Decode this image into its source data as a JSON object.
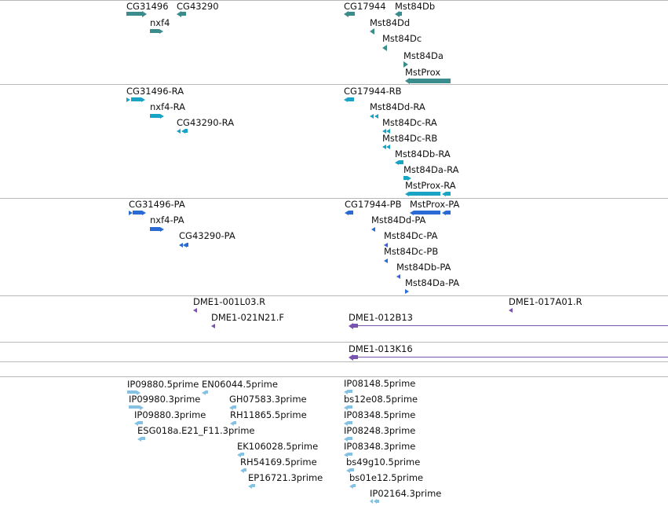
{
  "colors": {
    "gene": "#3b8c8c",
    "transcript": "#19a3c4",
    "protein": "#2a6ad4",
    "clone": "#7a52b0",
    "est": "#85c1e2",
    "divider": "#b8b8b8"
  },
  "tracks": [
    {
      "name": "gene-track",
      "color": "gene",
      "features": [
        {
          "label": "CG31496",
          "strand": "plus"
        },
        {
          "label": "CG43290",
          "strand": "minus"
        },
        {
          "label": "nxf4",
          "strand": "plus"
        },
        {
          "label": "CG17944",
          "strand": "minus"
        },
        {
          "label": "Mst84Db",
          "strand": "minus"
        },
        {
          "label": "Mst84Dd",
          "strand": "minus"
        },
        {
          "label": "Mst84Dc",
          "strand": "minus"
        },
        {
          "label": "Mst84Da",
          "strand": "plus"
        },
        {
          "label": "MstProx",
          "strand": "minus"
        }
      ]
    },
    {
      "name": "transcript-track",
      "color": "transcript",
      "features": [
        {
          "label": "CG31496-RA",
          "strand": "plus"
        },
        {
          "label": "nxf4-RA",
          "strand": "plus"
        },
        {
          "label": "CG43290-RA",
          "strand": "minus"
        },
        {
          "label": "CG17944-RB",
          "strand": "minus"
        },
        {
          "label": "Mst84Dd-RA",
          "strand": "minus"
        },
        {
          "label": "Mst84Dc-RA",
          "strand": "minus"
        },
        {
          "label": "Mst84Dc-RB",
          "strand": "minus"
        },
        {
          "label": "Mst84Db-RA",
          "strand": "minus"
        },
        {
          "label": "Mst84Da-RA",
          "strand": "plus"
        },
        {
          "label": "MstProx-RA",
          "strand": "minus"
        }
      ]
    },
    {
      "name": "protein-track",
      "color": "protein",
      "features": [
        {
          "label": "CG31496-PA",
          "strand": "plus"
        },
        {
          "label": "nxf4-PA",
          "strand": "plus"
        },
        {
          "label": "CG43290-PA",
          "strand": "minus"
        },
        {
          "label": "CG17944-PB",
          "strand": "minus"
        },
        {
          "label": "MstProx-PA",
          "strand": "minus"
        },
        {
          "label": "Mst84Dd-PA",
          "strand": "minus"
        },
        {
          "label": "Mst84Dc-PA",
          "strand": "minus"
        },
        {
          "label": "Mst84Dc-PB",
          "strand": "minus"
        },
        {
          "label": "Mst84Db-PA",
          "strand": "minus"
        },
        {
          "label": "Mst84Da-PA",
          "strand": "plus"
        }
      ]
    },
    {
      "name": "clone-end-track",
      "color": "clone",
      "features": [
        {
          "label": "DME1-001L03.R",
          "strand": "minus"
        },
        {
          "label": "DME1-017A01.R",
          "strand": "minus"
        },
        {
          "label": "DME1-021N21.F",
          "strand": "minus"
        },
        {
          "label": "DME1-012B13",
          "strand": "minus"
        }
      ]
    },
    {
      "name": "clone-track",
      "color": "clone",
      "features": [
        {
          "label": "DME1-013K16",
          "strand": "minus"
        }
      ]
    },
    {
      "name": "empty-track",
      "color": "clone",
      "features": []
    },
    {
      "name": "est-track",
      "color": "est",
      "features": [
        {
          "label": "IP09880.5prime",
          "strand": "plus"
        },
        {
          "label": "EN06044.5prime",
          "strand": "minus"
        },
        {
          "label": "IP09980.3prime",
          "strand": "plus"
        },
        {
          "label": "GH07583.3prime",
          "strand": "minus"
        },
        {
          "label": "IP09880.3prime",
          "strand": "minus"
        },
        {
          "label": "RH11865.5prime",
          "strand": "minus"
        },
        {
          "label": "ESG018a.E21_F11.3prime",
          "strand": "minus"
        },
        {
          "label": "EK106028.5prime",
          "strand": "minus"
        },
        {
          "label": "RH54169.5prime",
          "strand": "minus"
        },
        {
          "label": "EP16721.3prime",
          "strand": "minus"
        },
        {
          "label": "IP08148.5prime",
          "strand": "minus"
        },
        {
          "label": "bs12e08.5prime",
          "strand": "minus"
        },
        {
          "label": "IP08348.5prime",
          "strand": "minus"
        },
        {
          "label": "IP08248.3prime",
          "strand": "minus"
        },
        {
          "label": "IP08348.3prime",
          "strand": "minus"
        },
        {
          "label": "bs49g10.5prime",
          "strand": "minus"
        },
        {
          "label": "bs01e12.5prime",
          "strand": "minus"
        },
        {
          "label": "IP02164.3prime",
          "strand": "minus"
        }
      ]
    }
  ]
}
